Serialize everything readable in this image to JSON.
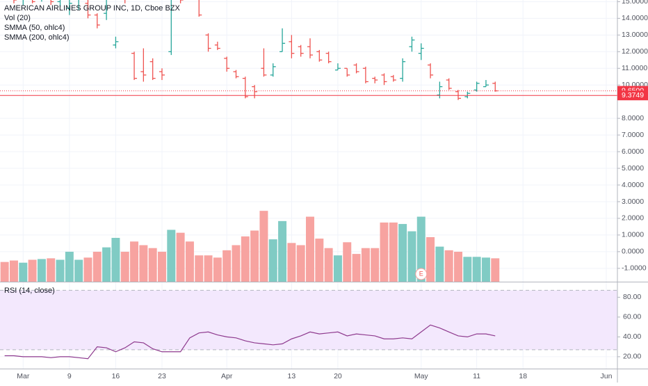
{
  "chart_data": [
    {
      "type": "ohlc",
      "title": "AMERICAN AIRLINES GROUP INC, 1D, Cboe BZX",
      "indicators": [
        "Vol (20)",
        "SMMA (50, ohlc4)",
        "SMMA (200, ohlc4)"
      ],
      "open": [
        16.2,
        15.8,
        15.3,
        15.4,
        15.2,
        15.4,
        15.0,
        14.6,
        15.2,
        14.9,
        14.2,
        14.3,
        12.4,
        15.4,
        11.9,
        10.8,
        11.4,
        10.8,
        12.0,
        15.6,
        15.8,
        15.2,
        13.0,
        12.4,
        11.6,
        10.8,
        10.4,
        9.9,
        11.0,
        10.6,
        12.0,
        12.6,
        12.3,
        12.3,
        12.0,
        11.9,
        10.9,
        11.0,
        11.2,
        11.0,
        10.4,
        10.6,
        10.5,
        10.4,
        12.3,
        11.9,
        11.2,
        9.4,
        10.3,
        9.6,
        9.3,
        9.7,
        9.9,
        10.1
      ],
      "high": [
        16.8,
        16.4,
        15.6,
        16.0,
        15.8,
        15.6,
        15.3,
        15.1,
        15.8,
        15.2,
        14.3,
        15.6,
        12.9,
        16.2,
        12.0,
        12.2,
        11.6,
        11.0,
        15.1,
        16.3,
        16.2,
        15.4,
        13.1,
        12.6,
        11.7,
        10.9,
        10.5,
        10.0,
        12.2,
        11.3,
        13.4,
        13.0,
        12.4,
        12.8,
        12.1,
        12.0,
        11.3,
        11.0,
        11.3,
        11.1,
        10.5,
        10.7,
        10.6,
        11.6,
        12.9,
        12.5,
        11.3,
        10.2,
        10.4,
        9.7,
        9.6,
        10.2,
        10.3,
        10.2
      ],
      "low": [
        15.6,
        14.9,
        14.8,
        14.9,
        15.0,
        14.8,
        14.7,
        14.2,
        14.5,
        14.0,
        13.4,
        13.9,
        12.2,
        14.9,
        10.3,
        10.2,
        10.3,
        10.3,
        11.8,
        14.9,
        15.2,
        14.1,
        12.0,
        12.1,
        10.8,
        10.4,
        9.2,
        9.2,
        10.5,
        10.5,
        12.0,
        11.6,
        11.7,
        11.6,
        11.4,
        11.3,
        10.9,
        10.5,
        10.7,
        10.1,
        10.1,
        10.0,
        10.2,
        10.2,
        12.0,
        11.5,
        10.4,
        9.2,
        9.7,
        9.1,
        9.2,
        9.6,
        9.9,
        9.6
      ],
      "close": [
        16.0,
        15.1,
        15.4,
        15.0,
        15.6,
        15.0,
        15.2,
        14.9,
        15.5,
        14.2,
        13.6,
        15.3,
        12.6,
        15.2,
        10.4,
        10.6,
        10.4,
        10.6,
        14.5,
        15.1,
        15.5,
        14.2,
        12.2,
        12.2,
        11.0,
        10.5,
        9.3,
        9.6,
        10.6,
        11.1,
        12.5,
        11.9,
        11.9,
        11.8,
        11.5,
        11.4,
        11.0,
        10.6,
        10.8,
        10.2,
        10.3,
        10.2,
        10.3,
        11.4,
        12.7,
        12.2,
        10.6,
        9.9,
        9.8,
        9.2,
        9.5,
        10.1,
        10.0,
        9.65
      ],
      "up_color": "#26a69a",
      "down_color": "#ef5350",
      "volume": {
        "values": [
          27,
          29,
          26,
          30,
          31,
          32,
          30,
          41,
          30,
          33,
          41,
          47,
          60,
          41,
          55,
          50,
          46,
          41,
          71,
          67,
          55,
          36,
          36,
          33,
          43,
          50,
          62,
          70,
          97,
          58,
          83,
          53,
          50,
          89,
          59,
          46,
          36,
          54,
          38,
          46,
          46,
          81,
          81,
          79,
          69,
          89,
          61,
          48,
          43,
          41,
          34,
          34,
          33,
          32
        ],
        "ylim": [
          0,
          100
        ],
        "up_color": "#80cbc4",
        "down_color": "#f7a3a0"
      },
      "xlim": [
        -0.5,
        66.2
      ],
      "xticks": [
        {
          "value": 2,
          "label": "Mar"
        },
        {
          "value": 7,
          "label": "9"
        },
        {
          "value": 12,
          "label": "16"
        },
        {
          "value": 17,
          "label": "23"
        },
        {
          "value": 24,
          "label": "Apr"
        },
        {
          "value": 31,
          "label": "13"
        },
        {
          "value": 36,
          "label": "20"
        },
        {
          "value": 45,
          "label": "May"
        },
        {
          "value": 51,
          "label": "11"
        },
        {
          "value": 56,
          "label": "18"
        },
        {
          "value": 65,
          "label": "Jun"
        }
      ],
      "ylim": [
        -1.8,
        15.1
      ],
      "yticks": [
        {
          "value": 15,
          "label": "15.0000"
        },
        {
          "value": 14,
          "label": "14.0000"
        },
        {
          "value": 13,
          "label": "13.0000"
        },
        {
          "value": 12,
          "label": "12.0000"
        },
        {
          "value": 11,
          "label": "11.0000"
        },
        {
          "value": 10,
          "label": "10.0000"
        },
        {
          "value": 8,
          "label": "8.0000"
        },
        {
          "value": 7,
          "label": "7.0000"
        },
        {
          "value": 6,
          "label": "6.0000"
        },
        {
          "value": 5,
          "label": "5.0000"
        },
        {
          "value": 4,
          "label": "4.0000"
        },
        {
          "value": 3,
          "label": "3.0000"
        },
        {
          "value": 2,
          "label": "2.0000"
        },
        {
          "value": 1,
          "label": "1.0000"
        },
        {
          "value": 0,
          "label": "0.0000"
        },
        {
          "value": -1,
          "label": "-1.0000"
        }
      ],
      "price_lines": [
        {
          "value": 9.65,
          "label": "9.6500",
          "color": "#f23645",
          "dashed": true
        },
        {
          "value": 9.3749,
          "label": "9.3749",
          "color": "#f23645",
          "dashed": false
        }
      ],
      "events": [
        {
          "x": 45,
          "label": "E"
        }
      ],
      "grid": true
    },
    {
      "type": "line",
      "title": "RSI (14, close)",
      "values": [
        21,
        21,
        20,
        20,
        20,
        19,
        20,
        20,
        19,
        18,
        30,
        29,
        25,
        29,
        35,
        34,
        28,
        25,
        25,
        25,
        39,
        44,
        45,
        42,
        40,
        39,
        36,
        34,
        33,
        32,
        33,
        38,
        41,
        45,
        43,
        44,
        45,
        41,
        43,
        42,
        41,
        38,
        38,
        39,
        38,
        45,
        52,
        49,
        45,
        41,
        40,
        43,
        43,
        41
      ],
      "color": "#8e3a8e",
      "ylim": [
        8,
        95
      ],
      "yticks": [
        {
          "value": 80,
          "label": "80.00"
        },
        {
          "value": 60,
          "label": "60.00"
        },
        {
          "value": 40,
          "label": "40.00"
        },
        {
          "value": 20,
          "label": "20.00"
        }
      ],
      "bands": [
        87,
        27
      ],
      "band_color": "#f3e8fd",
      "grid": true
    }
  ]
}
